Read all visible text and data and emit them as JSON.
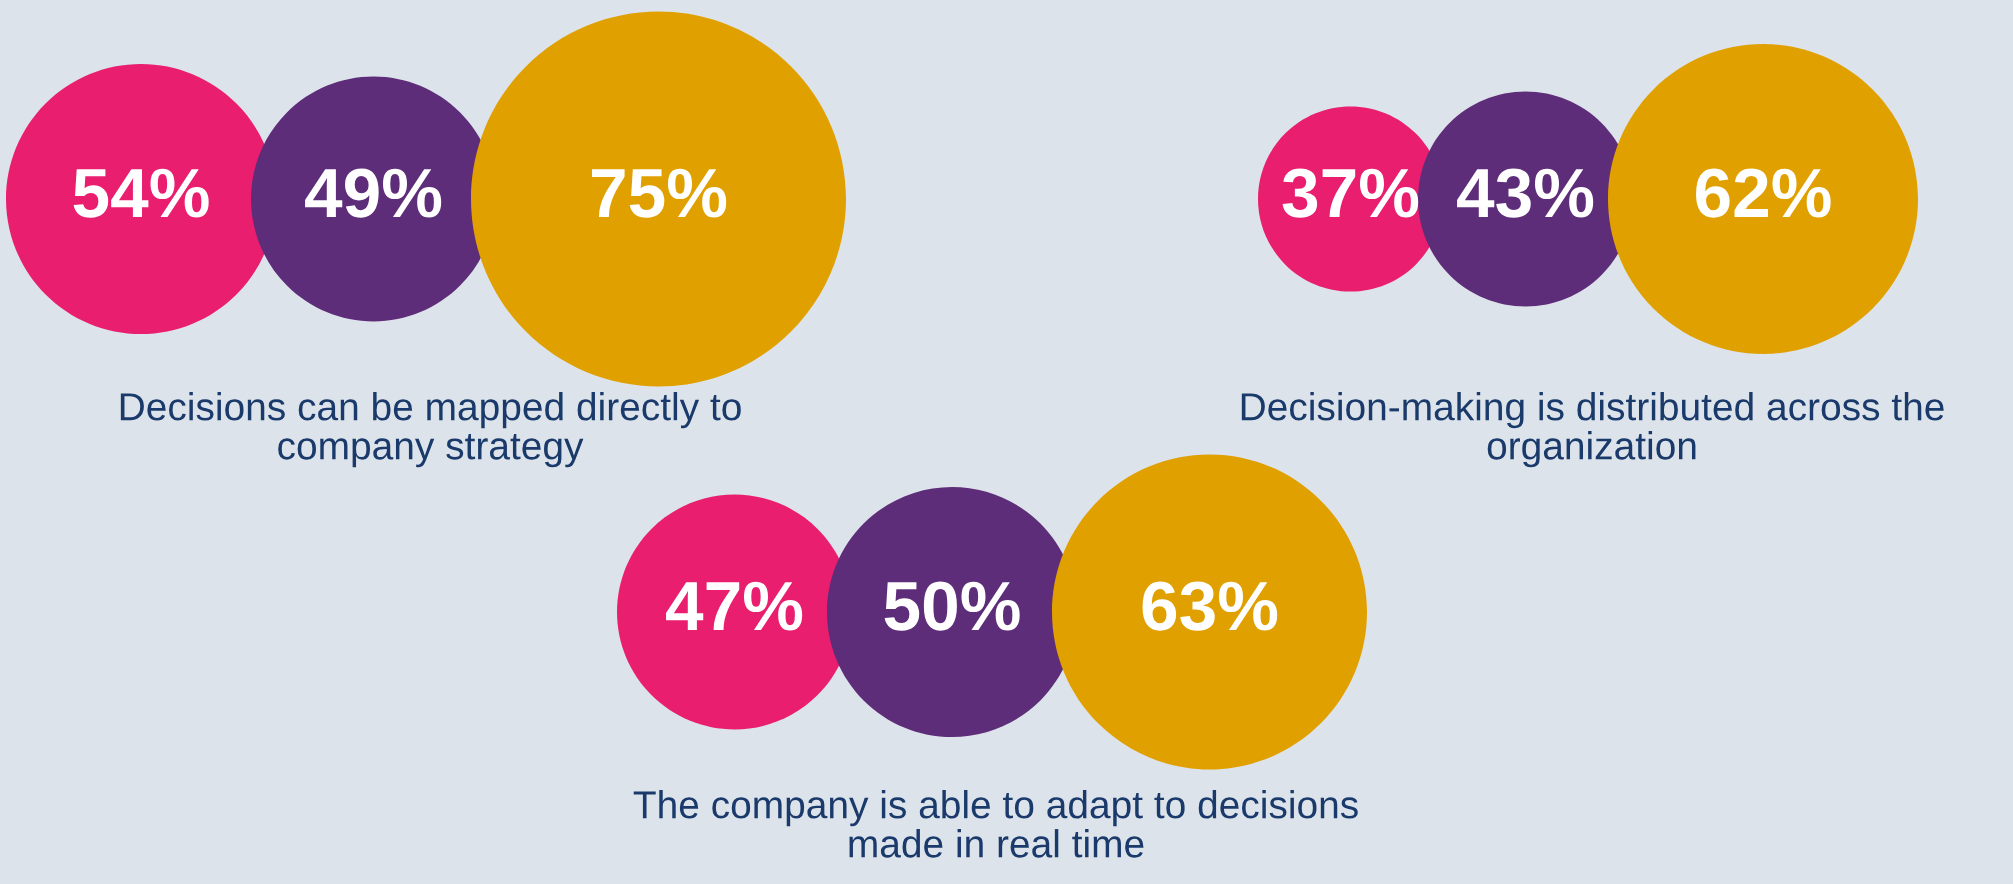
{
  "chart_data": [
    {
      "type": "other",
      "title": "Decisions can be mapped directly to\ncompany strategy",
      "categories": [
        null,
        null,
        null
      ],
      "values": [
        54,
        49,
        75
      ],
      "colors": [
        "#e91e6f",
        "#5e2d79",
        "#e0a000"
      ],
      "value_labels": [
        "54%",
        "49%",
        "75%"
      ]
    },
    {
      "type": "other",
      "title": "Decision-making is distributed across the\norganization",
      "categories": [
        null,
        null,
        null
      ],
      "values": [
        37,
        43,
        62
      ],
      "colors": [
        "#e91e6f",
        "#5e2d79",
        "#e0a000"
      ],
      "value_labels": [
        "37%",
        "43%",
        "62%"
      ]
    },
    {
      "type": "other",
      "title": "The company is able to adapt to decisions\nmade in real time",
      "categories": [
        null,
        null,
        null
      ],
      "values": [
        47,
        50,
        63
      ],
      "colors": [
        "#e91e6f",
        "#5e2d79",
        "#e0a000"
      ],
      "value_labels": [
        "47%",
        "50%",
        "63%"
      ]
    }
  ]
}
